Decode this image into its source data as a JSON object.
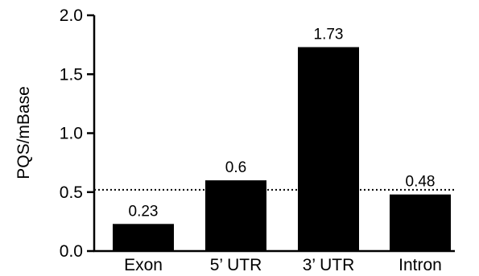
{
  "chart_data": {
    "type": "bar",
    "categories": [
      "Exon",
      "5’ UTR",
      "3’ UTR",
      "Intron"
    ],
    "values": [
      0.23,
      0.6,
      1.73,
      0.48
    ],
    "data_labels": [
      "0.23",
      "0.6",
      "1.73",
      "0.48"
    ],
    "title": "",
    "xlabel": "",
    "ylabel": "PQS/mBase",
    "ylim": [
      0,
      2.0
    ],
    "yticks": [
      0.0,
      0.5,
      1.0,
      1.5,
      2.0
    ],
    "ytick_labels": [
      "0.0",
      "0.5",
      "1.0",
      "1.5",
      "2.0"
    ],
    "reference_line": 0.52,
    "reference_line_style": "dotted",
    "bar_color": "#000000",
    "grid": false,
    "legend": "none"
  }
}
